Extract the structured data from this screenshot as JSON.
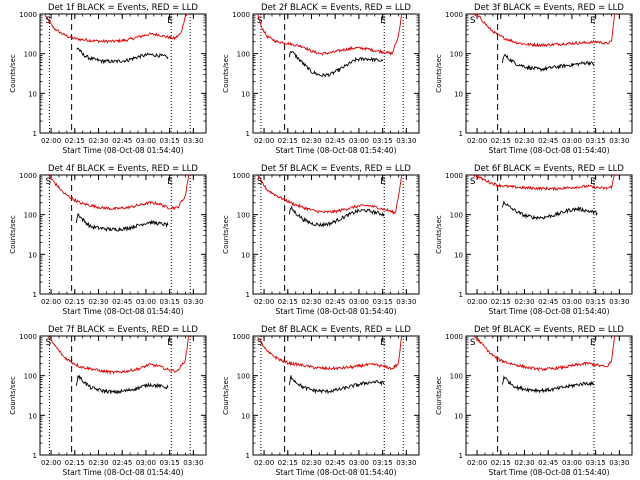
{
  "colors": {
    "events": "#000000",
    "lld": "#e00000",
    "axis": "#000000"
  },
  "chart_data": [
    {
      "type": "line",
      "title": "Det 1f  BLACK = Events, RED = LLD",
      "xlabel": "Start Time (08-Oct-08 01:54:40)",
      "ylabel": "Counts/sec",
      "yscale": "log",
      "ylim": [
        1,
        1000
      ],
      "xticklabels": [
        "02:00",
        "02:15",
        "02:30",
        "02:45",
        "03:00",
        "03:15",
        "03:30"
      ],
      "yticklabels": [
        "1",
        "10",
        "100",
        "1000"
      ],
      "markers": [
        "S",
        "E"
      ],
      "series": [
        {
          "name": "LLD",
          "color": "red",
          "x": [
            "01:56",
            "01:58",
            "02:02",
            "02:08",
            "02:13",
            "02:18",
            "02:25",
            "02:32",
            "02:40",
            "02:48",
            "02:56",
            "03:02",
            "03:08",
            "03:14",
            "03:18",
            "03:22",
            "03:25",
            "03:27"
          ],
          "y": [
            1000,
            700,
            430,
            300,
            250,
            230,
            215,
            205,
            205,
            220,
            270,
            310,
            300,
            260,
            240,
            320,
            900,
            1000
          ]
        },
        {
          "name": "Events",
          "color": "black",
          "x": [
            "02:16",
            "02:17",
            "02:20",
            "02:25",
            "02:32",
            "02:40",
            "02:48",
            "02:56",
            "03:02",
            "03:08",
            "03:12",
            "03:14"
          ],
          "y": [
            130,
            140,
            95,
            75,
            65,
            63,
            68,
            85,
            95,
            90,
            85,
            82
          ]
        }
      ],
      "vlines_dotted": [
        "01:59",
        "03:16",
        "03:28"
      ],
      "vlines_dashed": [
        "02:13"
      ]
    },
    {
      "type": "line",
      "title": "Det 2f  BLACK = Events, RED = LLD",
      "xlabel": "Start Time (08-Oct-08 01:54:40)",
      "ylabel": "Counts/sec",
      "yscale": "log",
      "ylim": [
        1,
        1000
      ],
      "xticklabels": [
        "02:00",
        "02:15",
        "02:30",
        "02:45",
        "03:00",
        "03:15",
        "03:30"
      ],
      "yticklabels": [
        "1",
        "10",
        "100",
        "1000"
      ],
      "markers": [
        "S",
        "E"
      ],
      "series": [
        {
          "name": "LLD",
          "color": "red",
          "x": [
            "01:56",
            "01:58",
            "02:02",
            "02:08",
            "02:13",
            "02:18",
            "02:25",
            "02:30",
            "02:36",
            "02:42",
            "02:50",
            "02:58",
            "03:04",
            "03:10",
            "03:16",
            "03:21",
            "03:25",
            "03:27"
          ],
          "y": [
            1000,
            500,
            270,
            200,
            190,
            170,
            150,
            115,
            100,
            105,
            125,
            140,
            135,
            120,
            110,
            100,
            280,
            1000
          ]
        },
        {
          "name": "Events",
          "color": "black",
          "x": [
            "02:16",
            "02:17",
            "02:21",
            "02:26",
            "02:30",
            "02:36",
            "02:42",
            "02:50",
            "02:58",
            "03:04",
            "03:10",
            "03:15"
          ],
          "y": [
            85,
            120,
            80,
            50,
            35,
            28,
            30,
            45,
            70,
            75,
            70,
            65
          ]
        }
      ],
      "vlines_dotted": [
        "01:58",
        "03:16",
        "03:28"
      ],
      "vlines_dashed": [
        "02:13"
      ]
    },
    {
      "type": "line",
      "title": "Det 3f  BLACK = Events, RED = LLD",
      "xlabel": "Start Time (08-Oct-08 01:54:40)",
      "ylabel": "Counts/sec",
      "yscale": "log",
      "ylim": [
        1,
        1000
      ],
      "xticklabels": [
        "02:00",
        "02:15",
        "02:30",
        "02:45",
        "03:00",
        "03:15",
        "03:30"
      ],
      "yticklabels": [
        "1",
        "10",
        "100",
        "1000"
      ],
      "markers": [
        "S",
        "E"
      ],
      "series": [
        {
          "name": "LLD",
          "color": "red",
          "x": [
            "01:58",
            "02:02",
            "02:08",
            "02:13",
            "02:18",
            "02:25",
            "02:32",
            "02:40",
            "02:48",
            "02:56",
            "03:04",
            "03:10",
            "03:16",
            "03:22",
            "03:25",
            "03:27"
          ],
          "y": [
            1000,
            800,
            420,
            300,
            240,
            190,
            170,
            165,
            170,
            180,
            185,
            190,
            200,
            180,
            200,
            1000
          ]
        },
        {
          "name": "Events",
          "color": "black",
          "x": [
            "02:16",
            "02:17",
            "02:20",
            "02:25",
            "02:32",
            "02:40",
            "02:48",
            "02:56",
            "03:04",
            "03:10",
            "03:14"
          ],
          "y": [
            55,
            95,
            75,
            55,
            45,
            40,
            45,
            50,
            55,
            60,
            55
          ]
        }
      ],
      "vlines_dotted": [
        "03:14"
      ],
      "vlines_dashed": [
        "02:13"
      ]
    },
    {
      "type": "line",
      "title": "Det 4f  BLACK = Events, RED = LLD",
      "xlabel": "Start Time (08-Oct-08 01:54:40)",
      "ylabel": "Counts/sec",
      "yscale": "log",
      "ylim": [
        1,
        1000
      ],
      "xticklabels": [
        "02:00",
        "02:15",
        "02:30",
        "02:45",
        "03:00",
        "03:15",
        "03:30"
      ],
      "yticklabels": [
        "1",
        "10",
        "100",
        "1000"
      ],
      "markers": [
        "S",
        "E"
      ],
      "series": [
        {
          "name": "LLD",
          "color": "red",
          "x": [
            "01:58",
            "02:02",
            "02:08",
            "02:13",
            "02:18",
            "02:25",
            "02:32",
            "02:40",
            "02:48",
            "02:56",
            "03:02",
            "03:08",
            "03:14",
            "03:20",
            "03:25",
            "03:27"
          ],
          "y": [
            1000,
            650,
            350,
            260,
            200,
            170,
            150,
            140,
            150,
            175,
            200,
            190,
            150,
            150,
            300,
            1000
          ]
        },
        {
          "name": "Events",
          "color": "black",
          "x": [
            "02:16",
            "02:17",
            "02:20",
            "02:25",
            "02:32",
            "02:40",
            "02:48",
            "02:56",
            "03:02",
            "03:08",
            "03:14"
          ],
          "y": [
            65,
            105,
            75,
            50,
            45,
            42,
            45,
            55,
            65,
            60,
            55
          ]
        }
      ],
      "vlines_dotted": [
        "01:59",
        "03:16",
        "03:28"
      ],
      "vlines_dashed": [
        "02:13"
      ]
    },
    {
      "type": "line",
      "title": "Det 5f  BLACK = Events, RED = LLD",
      "xlabel": "Start Time (08-Oct-08 01:54:40)",
      "ylabel": "Counts/sec",
      "yscale": "log",
      "ylim": [
        1,
        1000
      ],
      "xticklabels": [
        "02:00",
        "02:15",
        "02:30",
        "02:45",
        "03:00",
        "03:15",
        "03:30"
      ],
      "yticklabels": [
        "1",
        "10",
        "100",
        "1000"
      ],
      "markers": [
        "S",
        "E"
      ],
      "series": [
        {
          "name": "LLD",
          "color": "red",
          "x": [
            "01:56",
            "01:58",
            "02:02",
            "02:08",
            "02:13",
            "02:18",
            "02:25",
            "02:32",
            "02:38",
            "02:45",
            "02:52",
            "03:00",
            "03:06",
            "03:12",
            "03:18",
            "03:23",
            "03:26",
            "03:27"
          ],
          "y": [
            1000,
            700,
            420,
            300,
            240,
            190,
            150,
            125,
            115,
            120,
            140,
            165,
            170,
            150,
            130,
            110,
            500,
            1000
          ]
        },
        {
          "name": "Events",
          "color": "black",
          "x": [
            "02:16",
            "02:17",
            "02:20",
            "02:25",
            "02:30",
            "02:36",
            "02:42",
            "02:50",
            "02:58",
            "03:04",
            "03:10",
            "03:16"
          ],
          "y": [
            100,
            150,
            110,
            75,
            60,
            55,
            60,
            85,
            120,
            130,
            115,
            100
          ]
        }
      ],
      "vlines_dotted": [
        "01:58",
        "03:16",
        "03:28"
      ],
      "vlines_dashed": [
        "02:13"
      ]
    },
    {
      "type": "line",
      "title": "Det 6f  BLACK = Events, RED = LLD",
      "xlabel": "Start Time (08-Oct-08 01:54:40)",
      "ylabel": "Counts/sec",
      "yscale": "log",
      "ylim": [
        1,
        1000
      ],
      "xticklabels": [
        "02:00",
        "02:15",
        "02:30",
        "02:45",
        "03:00",
        "03:15",
        "03:30"
      ],
      "yticklabels": [
        "1",
        "10",
        "100",
        "1000"
      ],
      "markers": [
        "S",
        "E"
      ],
      "series": [
        {
          "name": "LLD",
          "color": "red",
          "x": [
            "01:58",
            "02:02",
            "02:08",
            "02:13",
            "02:18",
            "02:25",
            "02:32",
            "02:40",
            "02:48",
            "02:56",
            "03:04",
            "03:10",
            "03:16",
            "03:22",
            "03:25",
            "03:27"
          ],
          "y": [
            1000,
            850,
            650,
            560,
            520,
            490,
            470,
            460,
            450,
            470,
            500,
            520,
            480,
            460,
            500,
            1000
          ]
        },
        {
          "name": "Events",
          "color": "black",
          "x": [
            "02:16",
            "02:17",
            "02:20",
            "02:25",
            "02:30",
            "02:36",
            "02:42",
            "02:50",
            "02:58",
            "03:04",
            "03:10",
            "03:16"
          ],
          "y": [
            150,
            210,
            160,
            120,
            95,
            85,
            85,
            100,
            130,
            140,
            125,
            110
          ]
        }
      ],
      "vlines_dotted": [
        "03:14"
      ],
      "vlines_dashed": [
        "02:13"
      ]
    },
    {
      "type": "line",
      "title": "Det 7f  BLACK = Events, RED = LLD",
      "xlabel": "Start Time (08-Oct-08 01:54:40)",
      "ylabel": "Counts/sec",
      "yscale": "log",
      "ylim": [
        1,
        1000
      ],
      "xticklabels": [
        "02:00",
        "02:15",
        "02:30",
        "02:45",
        "03:00",
        "03:15",
        "03:30"
      ],
      "yticklabels": [
        "1",
        "10",
        "100",
        "1000"
      ],
      "markers": [
        "S",
        "E"
      ],
      "series": [
        {
          "name": "LLD",
          "color": "red",
          "x": [
            "01:58",
            "02:02",
            "02:08",
            "02:13",
            "02:18",
            "02:25",
            "02:32",
            "02:40",
            "02:48",
            "02:56",
            "03:02",
            "03:08",
            "03:14",
            "03:20",
            "03:25",
            "03:27"
          ],
          "y": [
            1000,
            600,
            300,
            220,
            170,
            150,
            130,
            120,
            130,
            150,
            190,
            175,
            140,
            130,
            250,
            1000
          ]
        },
        {
          "name": "Events",
          "color": "black",
          "x": [
            "02:16",
            "02:17",
            "02:20",
            "02:25",
            "02:32",
            "02:40",
            "02:48",
            "02:56",
            "03:02",
            "03:08",
            "03:14"
          ],
          "y": [
            55,
            100,
            75,
            50,
            42,
            38,
            42,
            50,
            60,
            55,
            50
          ]
        }
      ],
      "vlines_dotted": [
        "01:59",
        "03:16",
        "03:28"
      ],
      "vlines_dashed": [
        "02:13"
      ]
    },
    {
      "type": "line",
      "title": "Det 8f  BLACK = Events, RED = LLD",
      "xlabel": "Start Time (08-Oct-08 01:54:40)",
      "ylabel": "Counts/sec",
      "yscale": "log",
      "ylim": [
        1,
        1000
      ],
      "xticklabels": [
        "02:00",
        "02:15",
        "02:30",
        "02:45",
        "03:00",
        "03:15",
        "03:30"
      ],
      "yticklabels": [
        "1",
        "10",
        "100",
        "1000"
      ],
      "markers": [
        "S",
        "E"
      ],
      "series": [
        {
          "name": "LLD",
          "color": "red",
          "x": [
            "01:56",
            "01:58",
            "02:02",
            "02:08",
            "02:13",
            "02:18",
            "02:25",
            "02:32",
            "02:40",
            "02:48",
            "02:56",
            "03:04",
            "03:10",
            "03:16",
            "03:21",
            "03:25",
            "03:27"
          ],
          "y": [
            1000,
            700,
            400,
            280,
            220,
            200,
            180,
            160,
            150,
            155,
            165,
            185,
            190,
            170,
            150,
            200,
            1000
          ]
        },
        {
          "name": "Events",
          "color": "black",
          "x": [
            "02:16",
            "02:17",
            "02:20",
            "02:25",
            "02:32",
            "02:40",
            "02:48",
            "02:56",
            "03:04",
            "03:10",
            "03:16"
          ],
          "y": [
            55,
            95,
            70,
            50,
            42,
            40,
            45,
            55,
            65,
            70,
            65
          ]
        }
      ],
      "vlines_dotted": [
        "01:58",
        "03:16",
        "03:28"
      ],
      "vlines_dashed": [
        "02:13"
      ]
    },
    {
      "type": "line",
      "title": "Det 9f  BLACK = Events, RED = LLD",
      "xlabel": "Start Time (08-Oct-08 01:54:40)",
      "ylabel": "Counts/sec",
      "yscale": "log",
      "ylim": [
        1,
        1000
      ],
      "xticklabels": [
        "02:00",
        "02:15",
        "02:30",
        "02:45",
        "03:00",
        "03:15",
        "03:30"
      ],
      "yticklabels": [
        "1",
        "10",
        "100",
        "1000"
      ],
      "markers": [
        "S",
        "E"
      ],
      "series": [
        {
          "name": "LLD",
          "color": "red",
          "x": [
            "01:58",
            "02:02",
            "02:08",
            "02:13",
            "02:18",
            "02:25",
            "02:32",
            "02:40",
            "02:48",
            "02:56",
            "03:04",
            "03:10",
            "03:16",
            "03:22",
            "03:25",
            "03:27"
          ],
          "y": [
            1000,
            700,
            380,
            260,
            220,
            185,
            160,
            145,
            150,
            165,
            190,
            205,
            185,
            165,
            230,
            1000
          ]
        },
        {
          "name": "Events",
          "color": "black",
          "x": [
            "02:16",
            "02:17",
            "02:20",
            "02:25",
            "02:32",
            "02:40",
            "02:48",
            "02:56",
            "03:04",
            "03:10",
            "03:14"
          ],
          "y": [
            60,
            95,
            70,
            50,
            45,
            42,
            45,
            52,
            60,
            65,
            60
          ]
        }
      ],
      "vlines_dotted": [
        "03:14"
      ],
      "vlines_dashed": [
        "02:13"
      ]
    }
  ]
}
